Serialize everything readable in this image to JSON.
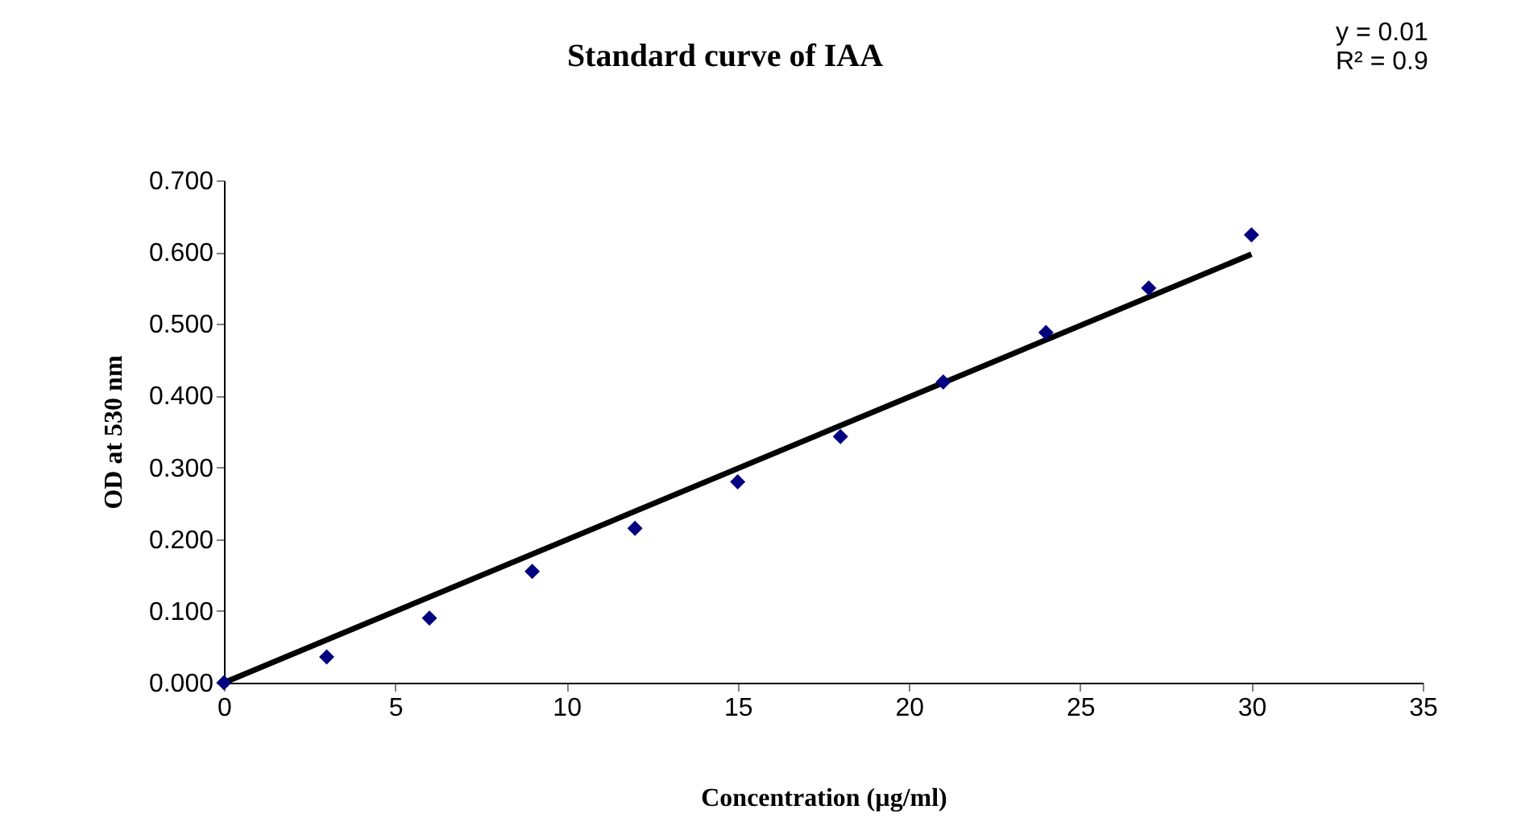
{
  "chart_data": {
    "type": "scatter",
    "title": "Standard curve of IAA",
    "xlabel": "Concentration (µg/ml)",
    "ylabel": "OD at 530 nm",
    "annotations": [
      "y = 0.01",
      "R² = 0.9"
    ],
    "marker": "diamond",
    "grid": false,
    "xlim": [
      0,
      35
    ],
    "xticks": [
      0,
      5,
      10,
      15,
      20,
      25,
      30,
      35
    ],
    "ylim": [
      0,
      0.7
    ],
    "yticks": [
      {
        "value": 0,
        "label": "0.000"
      },
      {
        "value": 0.1,
        "label": "0.100"
      },
      {
        "value": 0.2,
        "label": "0.200"
      },
      {
        "value": 0.3,
        "label": "0.300"
      },
      {
        "value": 0.4,
        "label": "0.400"
      },
      {
        "value": 0.5,
        "label": "0.500"
      },
      {
        "value": 0.6,
        "label": "0.600"
      },
      {
        "value": 0.7,
        "label": "0.700"
      }
    ],
    "series": [
      {
        "color": "#000080",
        "x": [
          0,
          3,
          6,
          9,
          12,
          15,
          18,
          21,
          24,
          27,
          30
        ],
        "values": [
          0,
          0.036,
          0.09,
          0.155,
          0.215,
          0.28,
          0.343,
          0.419,
          0.488,
          0.55,
          0.624
        ]
      },
      {
        "type": "line",
        "color": "#000000",
        "line_style": "solid",
        "marker": "none",
        "x": [
          0,
          30
        ],
        "values": [
          0,
          0.597
        ]
      }
    ]
  }
}
